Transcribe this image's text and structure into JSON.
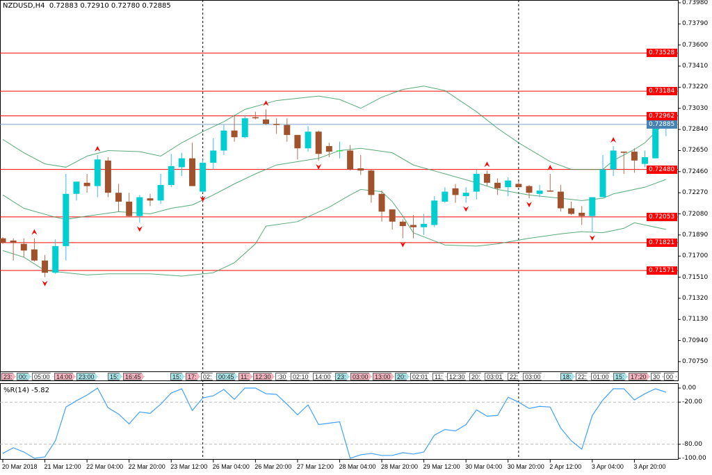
{
  "header": {
    "symbol": "NZDUSD,H4",
    "ohlc": "0.72883 0.72910 0.72780 0.72885"
  },
  "indicator": {
    "label": "%R(14) -5.82",
    "levels": [
      "0.00",
      "-20.00",
      "-80.00",
      "-100.00"
    ]
  },
  "colors": {
    "bull": "#00CED1",
    "bear": "#A0522D",
    "doji": "#00FF00",
    "bands": "#3C9B63",
    "level_line": "#FF0000",
    "price_line": "#7BA0C8",
    "price_label": "#4682B4",
    "wpr": "#3FA0FF",
    "fractal": "#FF0000"
  },
  "time_tags": [
    {
      "text": "23:",
      "color": "pink"
    },
    {
      "text": "00:",
      "color": "cyan"
    },
    {
      "text": "05:00",
      "color": "white"
    },
    {
      "text": "14:00",
      "color": "pink"
    },
    {
      "text": "23:00",
      "color": "cyan"
    },
    {
      "text": "15:",
      "color": "cyan"
    },
    {
      "text": "16:45",
      "color": "pink"
    },
    {
      "text": "15:",
      "color": "cyan"
    },
    {
      "text": "17:",
      "color": "pink"
    },
    {
      "text": "02:",
      "color": "white"
    },
    {
      "text": "00:45",
      "color": "cyan"
    },
    {
      "text": "11:",
      "color": "pink"
    },
    {
      "text": "12:30",
      "color": "pink"
    },
    {
      "text": ":30",
      "color": "white"
    },
    {
      "text": "02:10",
      "color": "white"
    },
    {
      "text": "14:00",
      "color": "white"
    },
    {
      "text": "23:",
      "color": "cyan"
    },
    {
      "text": "03:00",
      "color": "pink"
    },
    {
      "text": "13:00",
      "color": "pink"
    },
    {
      "text": "20:",
      "color": "cyan"
    },
    {
      "text": "02:01",
      "color": "white"
    },
    {
      "text": "11:",
      "color": "white"
    },
    {
      "text": "12:30",
      "color": "white"
    },
    {
      "text": "20:",
      "color": "white"
    },
    {
      "text": "03:01",
      "color": "white"
    },
    {
      "text": "22:",
      "color": "white"
    },
    {
      "text": "03:00",
      "color": "white"
    },
    {
      "text": "18:",
      "color": "cyan"
    },
    {
      "text": "22:",
      "color": "white"
    },
    {
      "text": "01:00",
      "color": "white"
    },
    {
      "text": "15:",
      "color": "cyan"
    },
    {
      "text": "17:20",
      "color": "pink"
    },
    {
      "text": "30",
      "color": "white"
    },
    {
      "text": "00",
      "color": "white"
    }
  ],
  "chart_data": [
    {
      "type": "candlestick",
      "title": "NZDUSD,H4",
      "ylim": [
        0.7075,
        0.7398
      ],
      "y_ticks": [
        "0.73980",
        "0.73790",
        "0.73600",
        "0.73410",
        "0.73220",
        "0.73030",
        "0.72840",
        "0.72650",
        "0.72460",
        "0.72270",
        "0.72080",
        "0.71890",
        "0.71700",
        "0.71510",
        "0.71320",
        "0.71130",
        "0.70940",
        "0.70750"
      ],
      "x_ticks": [
        {
          "index": 0,
          "label": "20 Mar 2018"
        },
        {
          "index": 4,
          "label": "21 Mar 12:00"
        },
        {
          "index": 8,
          "label": "22 Mar 04:00"
        },
        {
          "index": 12,
          "label": "22 Mar 20:00"
        },
        {
          "index": 16,
          "label": "23 Mar 12:00"
        },
        {
          "index": 20,
          "label": "26 Mar 04:00"
        },
        {
          "index": 24,
          "label": "26 Mar 20:00"
        },
        {
          "index": 28,
          "label": "27 Mar 12:00"
        },
        {
          "index": 32,
          "label": "28 Mar 04:00"
        },
        {
          "index": 36,
          "label": "28 Mar 20:00"
        },
        {
          "index": 40,
          "label": "29 Mar 12:00"
        },
        {
          "index": 44,
          "label": "30 Mar 04:00"
        },
        {
          "index": 48,
          "label": "30 Mar 20:00"
        },
        {
          "index": 52,
          "label": "2 Apr 12:00"
        },
        {
          "index": 56,
          "label": "3 Apr 04:00"
        },
        {
          "index": 60,
          "label": "3 Apr 20:00"
        }
      ],
      "candles_ohlc": [
        [
          0.7186,
          0.7187,
          0.7181,
          0.7182
        ],
        [
          0.7184,
          0.7186,
          0.7166,
          0.7182
        ],
        [
          0.7181,
          0.7186,
          0.7169,
          0.7175
        ],
        [
          0.7176,
          0.7186,
          0.7165,
          0.7166
        ],
        [
          0.7166,
          0.7171,
          0.7151,
          0.7155
        ],
        [
          0.7155,
          0.7185,
          0.7154,
          0.7179
        ],
        [
          0.7179,
          0.7244,
          0.7166,
          0.7226
        ],
        [
          0.7226,
          0.7237,
          0.722,
          0.7237
        ],
        [
          0.7236,
          0.7244,
          0.7227,
          0.7233
        ],
        [
          0.7233,
          0.7261,
          0.7223,
          0.7257
        ],
        [
          0.7256,
          0.7259,
          0.7223,
          0.7227
        ],
        [
          0.7227,
          0.7235,
          0.721,
          0.7219
        ],
        [
          0.7219,
          0.7227,
          0.7205,
          0.7206
        ],
        [
          0.7206,
          0.7225,
          0.72,
          0.7223
        ],
        [
          0.7222,
          0.7226,
          0.7215,
          0.722
        ],
        [
          0.722,
          0.7244,
          0.7217,
          0.7234
        ],
        [
          0.7234,
          0.7262,
          0.7232,
          0.7251
        ],
        [
          0.725,
          0.7263,
          0.7242,
          0.7258
        ],
        [
          0.7258,
          0.7272,
          0.7233,
          0.7233
        ],
        [
          0.7228,
          0.7257,
          0.7227,
          0.7254
        ],
        [
          0.7254,
          0.7276,
          0.7248,
          0.7265
        ],
        [
          0.7265,
          0.7288,
          0.7261,
          0.7283
        ],
        [
          0.7283,
          0.7296,
          0.7273,
          0.7277
        ],
        [
          0.7277,
          0.7297,
          0.7276,
          0.7294
        ],
        [
          0.7295,
          0.73,
          0.7293,
          0.7294
        ],
        [
          0.7293,
          0.7302,
          0.7288,
          0.7289
        ],
        [
          0.7289,
          0.7294,
          0.728,
          0.7288
        ],
        [
          0.7288,
          0.7294,
          0.7273,
          0.7279
        ],
        [
          0.7279,
          0.7279,
          0.7257,
          0.7267
        ],
        [
          0.7267,
          0.7287,
          0.7264,
          0.7282
        ],
        [
          0.7282,
          0.7283,
          0.7256,
          0.7262
        ],
        [
          0.7269,
          0.7272,
          0.7259,
          0.7264
        ],
        [
          0.7265,
          0.7273,
          0.7258,
          0.7265
        ],
        [
          0.7265,
          0.727,
          0.7247,
          0.7248
        ],
        [
          0.7249,
          0.7261,
          0.7243,
          0.7247
        ],
        [
          0.7247,
          0.7248,
          0.7218,
          0.7225
        ],
        [
          0.7226,
          0.7229,
          0.7201,
          0.721
        ],
        [
          0.7212,
          0.7212,
          0.7194,
          0.7201
        ],
        [
          0.7201,
          0.7203,
          0.7186,
          0.7197
        ],
        [
          0.7198,
          0.7207,
          0.7186,
          0.7196
        ],
        [
          0.7196,
          0.7208,
          0.7189,
          0.7199
        ],
        [
          0.7198,
          0.7224,
          0.7196,
          0.722
        ],
        [
          0.7219,
          0.7232,
          0.7218,
          0.7228
        ],
        [
          0.7231,
          0.7235,
          0.7218,
          0.7225
        ],
        [
          0.7224,
          0.7232,
          0.7218,
          0.7227
        ],
        [
          0.7228,
          0.7248,
          0.7221,
          0.7244
        ],
        [
          0.7244,
          0.7247,
          0.7233,
          0.7236
        ],
        [
          0.7236,
          0.724,
          0.7225,
          0.7231
        ],
        [
          0.7232,
          0.7241,
          0.7224,
          0.7238
        ],
        [
          0.7235,
          0.7237,
          0.7232,
          0.7232
        ],
        [
          0.7233,
          0.7234,
          0.7222,
          0.7227
        ],
        [
          0.7226,
          0.7234,
          0.7223,
          0.7229
        ],
        [
          0.7229,
          0.7244,
          0.7228,
          0.7228
        ],
        [
          0.7228,
          0.7234,
          0.721,
          0.7213
        ],
        [
          0.7213,
          0.7219,
          0.7207,
          0.7208
        ],
        [
          0.7209,
          0.7215,
          0.7198,
          0.7206
        ],
        [
          0.7206,
          0.7223,
          0.7192,
          0.7223
        ],
        [
          0.7223,
          0.7261,
          0.7223,
          0.7248
        ],
        [
          0.7248,
          0.7269,
          0.7242,
          0.7265
        ],
        [
          0.7264,
          0.7264,
          0.7244,
          0.7263
        ],
        [
          0.7264,
          0.7267,
          0.7245,
          0.7256
        ],
        [
          0.7253,
          0.7265,
          0.725,
          0.7259
        ],
        [
          0.7258,
          0.7294,
          0.7258,
          0.7288
        ],
        [
          0.72883,
          0.7291,
          0.7278,
          0.72885
        ]
      ],
      "bollinger": {
        "upper": [
          [
            0,
            0.7275
          ],
          [
            2,
            0.7263
          ],
          [
            4,
            0.7253
          ],
          [
            6,
            0.725
          ],
          [
            8,
            0.726
          ],
          [
            10,
            0.7265
          ],
          [
            13,
            0.7264
          ],
          [
            15,
            0.726
          ],
          [
            17,
            0.7272
          ],
          [
            19,
            0.7282
          ],
          [
            21,
            0.7291
          ],
          [
            23,
            0.7302
          ],
          [
            26,
            0.731
          ],
          [
            30,
            0.7314
          ],
          [
            32,
            0.7311
          ],
          [
            34,
            0.7303
          ],
          [
            36,
            0.7313
          ],
          [
            38,
            0.732
          ],
          [
            40,
            0.7323
          ],
          [
            42,
            0.7319
          ],
          [
            45,
            0.73
          ],
          [
            47,
            0.7285
          ],
          [
            49,
            0.7272
          ],
          [
            52,
            0.7255
          ],
          [
            54,
            0.7248
          ],
          [
            57,
            0.7248
          ],
          [
            58,
            0.7256
          ],
          [
            60,
            0.7266
          ],
          [
            61,
            0.7272
          ],
          [
            63,
            0.7291
          ]
        ],
        "middle": [
          [
            0,
            0.7225
          ],
          [
            2,
            0.7213
          ],
          [
            5,
            0.7205
          ],
          [
            6,
            0.7203
          ],
          [
            8,
            0.7206
          ],
          [
            11,
            0.721
          ],
          [
            14,
            0.7208
          ],
          [
            16,
            0.7213
          ],
          [
            18,
            0.7216
          ],
          [
            20,
            0.7225
          ],
          [
            22,
            0.7235
          ],
          [
            24,
            0.7244
          ],
          [
            26,
            0.7252
          ],
          [
            30,
            0.7258
          ],
          [
            32,
            0.7265
          ],
          [
            34,
            0.7267
          ],
          [
            37,
            0.7263
          ],
          [
            39,
            0.7252
          ],
          [
            42,
            0.7244
          ],
          [
            45,
            0.7236
          ],
          [
            47,
            0.723
          ],
          [
            50,
            0.7225
          ],
          [
            53,
            0.7222
          ],
          [
            55,
            0.722
          ],
          [
            57,
            0.7222
          ],
          [
            58,
            0.7226
          ],
          [
            61,
            0.7232
          ],
          [
            63,
            0.7239
          ]
        ],
        "lower": [
          [
            0,
            0.7175
          ],
          [
            2,
            0.7169
          ],
          [
            4,
            0.7157
          ],
          [
            6,
            0.7155
          ],
          [
            8,
            0.7153
          ],
          [
            10,
            0.7154
          ],
          [
            14,
            0.7154
          ],
          [
            17,
            0.7152
          ],
          [
            20,
            0.7155
          ],
          [
            22,
            0.7164
          ],
          [
            24,
            0.7181
          ],
          [
            25,
            0.7197
          ],
          [
            28,
            0.7201
          ],
          [
            31,
            0.7214
          ],
          [
            33,
            0.7225
          ],
          [
            34,
            0.723
          ],
          [
            36,
            0.7228
          ],
          [
            37,
            0.7219
          ],
          [
            38,
            0.7206
          ],
          [
            39,
            0.7191
          ],
          [
            42,
            0.718
          ],
          [
            45,
            0.7179
          ],
          [
            47,
            0.7181
          ],
          [
            50,
            0.7186
          ],
          [
            53,
            0.719
          ],
          [
            55,
            0.7192
          ],
          [
            57,
            0.7191
          ],
          [
            59,
            0.7195
          ],
          [
            60,
            0.72
          ],
          [
            61,
            0.7198
          ],
          [
            63,
            0.7194
          ]
        ]
      },
      "fractals_up": [
        3,
        9,
        25,
        46,
        52,
        58
      ],
      "fractals_down": [
        4,
        13,
        19,
        30,
        38,
        44,
        50,
        56
      ],
      "period_separators": [
        19,
        49
      ],
      "horizontal_levels": [
        "0.73528",
        "0.73184",
        "0.72962",
        "0.72480",
        "0.72053",
        "0.71821",
        "0.71571"
      ],
      "current_price": "0.72885"
    },
    {
      "type": "line",
      "title": "%R(14) -5.82",
      "ylim": [
        -100,
        0
      ],
      "levels": [
        -20,
        -80
      ],
      "values": [
        -93,
        -85,
        -91,
        -100,
        -98,
        -75,
        -27,
        -18,
        -10,
        0,
        -28,
        -37,
        -51,
        -34,
        -36,
        -23,
        -7,
        -1,
        -32,
        -14,
        -11,
        -2,
        -16,
        0,
        0,
        -8,
        -9,
        -23,
        -38,
        -24,
        -52,
        -50,
        -48,
        -100,
        -95,
        -93,
        -96,
        -96,
        -92,
        -94,
        -91,
        -67,
        -59,
        -61,
        -52,
        -31,
        -40,
        -39,
        -13,
        -20,
        -29,
        -26,
        -27,
        -57,
        -75,
        -87,
        -39,
        -17,
        -1,
        -1,
        -17,
        -8,
        -1,
        -5.82
      ]
    }
  ]
}
